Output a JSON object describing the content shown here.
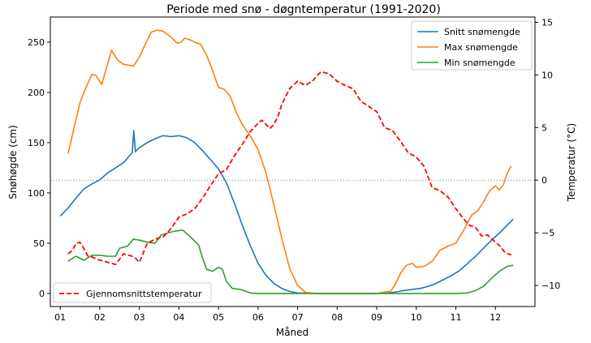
{
  "chart_data": {
    "type": "line",
    "title": "Periode med snø - døgntemperatur (1991-2020)",
    "xlabel": "Måned",
    "ylabel_left": "Snøhøgde (cm)",
    "ylabel_right": "Temperatur (°C)",
    "x_ticks": [
      "01",
      "02",
      "03",
      "04",
      "05",
      "06",
      "07",
      "08",
      "09",
      "10",
      "11",
      "12"
    ],
    "xlim": [
      0.75,
      13.0
    ],
    "ylim_left": [
      -13,
      275
    ],
    "ylim_right": [
      -12.0,
      15.5
    ],
    "yticks_left": [
      0,
      50,
      100,
      150,
      200,
      250
    ],
    "yticks_right": [
      -10,
      -5,
      0,
      5,
      10,
      15
    ],
    "reference_line": {
      "axis": "right",
      "value": 0,
      "style": "dotted",
      "color": "#999999"
    },
    "legend_upper": {
      "position": "top-right",
      "entries": [
        "snitt",
        "max",
        "min"
      ]
    },
    "legend_lower": {
      "position": "bottom-left",
      "entries": [
        "temp"
      ]
    },
    "series": [
      {
        "id": "snitt",
        "name": "Snitt snømengde",
        "axis": "left",
        "color": "#1f77b4",
        "dash": "solid",
        "points": [
          [
            1.0,
            77
          ],
          [
            1.2,
            85
          ],
          [
            1.4,
            95
          ],
          [
            1.6,
            104
          ],
          [
            1.8,
            109
          ],
          [
            2.0,
            113
          ],
          [
            2.2,
            120
          ],
          [
            2.4,
            125
          ],
          [
            2.6,
            130
          ],
          [
            2.75,
            137
          ],
          [
            2.82,
            140
          ],
          [
            2.86,
            162
          ],
          [
            2.9,
            141
          ],
          [
            3.0,
            145
          ],
          [
            3.2,
            150
          ],
          [
            3.4,
            154
          ],
          [
            3.6,
            157
          ],
          [
            3.8,
            156
          ],
          [
            4.0,
            157
          ],
          [
            4.2,
            155
          ],
          [
            4.4,
            150
          ],
          [
            4.6,
            142
          ],
          [
            4.8,
            133
          ],
          [
            5.0,
            124
          ],
          [
            5.2,
            110
          ],
          [
            5.4,
            90
          ],
          [
            5.6,
            68
          ],
          [
            5.8,
            48
          ],
          [
            6.0,
            30
          ],
          [
            6.2,
            18
          ],
          [
            6.4,
            10
          ],
          [
            6.6,
            5
          ],
          [
            6.8,
            2
          ],
          [
            7.0,
            0.5
          ],
          [
            7.5,
            0
          ],
          [
            8,
            0
          ],
          [
            8.5,
            0
          ],
          [
            9.0,
            0
          ],
          [
            9.3,
            0.5
          ],
          [
            9.5,
            1.5
          ],
          [
            9.7,
            3
          ],
          [
            9.9,
            4
          ],
          [
            10.1,
            5
          ],
          [
            10.3,
            7
          ],
          [
            10.5,
            10
          ],
          [
            10.7,
            14
          ],
          [
            10.9,
            18
          ],
          [
            11.1,
            23
          ],
          [
            11.3,
            30
          ],
          [
            11.5,
            37
          ],
          [
            11.7,
            45
          ],
          [
            11.9,
            53
          ],
          [
            12.1,
            60
          ],
          [
            12.3,
            68
          ],
          [
            12.4,
            72
          ],
          [
            12.45,
            74
          ]
        ]
      },
      {
        "id": "max",
        "name": "Max snømengde",
        "axis": "left",
        "color": "#ff7f0e",
        "dash": "solid",
        "points": [
          [
            1.2,
            139
          ],
          [
            1.35,
            165
          ],
          [
            1.5,
            190
          ],
          [
            1.65,
            205
          ],
          [
            1.8,
            218
          ],
          [
            1.9,
            217
          ],
          [
            2.05,
            208
          ],
          [
            2.1,
            215
          ],
          [
            2.3,
            242
          ],
          [
            2.45,
            232
          ],
          [
            2.6,
            228
          ],
          [
            2.75,
            227
          ],
          [
            2.85,
            226
          ],
          [
            3.0,
            235
          ],
          [
            3.15,
            248
          ],
          [
            3.3,
            260
          ],
          [
            3.45,
            262
          ],
          [
            3.6,
            261
          ],
          [
            3.8,
            255
          ],
          [
            3.95,
            249
          ],
          [
            4.05,
            250
          ],
          [
            4.15,
            254
          ],
          [
            4.3,
            252
          ],
          [
            4.45,
            249
          ],
          [
            4.55,
            248
          ],
          [
            4.7,
            237
          ],
          [
            4.85,
            222
          ],
          [
            5.0,
            205
          ],
          [
            5.15,
            203
          ],
          [
            5.3,
            196
          ],
          [
            5.45,
            180
          ],
          [
            5.6,
            168
          ],
          [
            5.8,
            157
          ],
          [
            6.0,
            143
          ],
          [
            6.2,
            120
          ],
          [
            6.4,
            88
          ],
          [
            6.6,
            55
          ],
          [
            6.8,
            25
          ],
          [
            7.0,
            8
          ],
          [
            7.2,
            1
          ],
          [
            7.5,
            0
          ],
          [
            8,
            0
          ],
          [
            8.5,
            0
          ],
          [
            9.0,
            0
          ],
          [
            9.2,
            1.5
          ],
          [
            9.35,
            2
          ],
          [
            9.45,
            8
          ],
          [
            9.6,
            20
          ],
          [
            9.75,
            28
          ],
          [
            9.9,
            30
          ],
          [
            10.0,
            26
          ],
          [
            10.2,
            27
          ],
          [
            10.4,
            32
          ],
          [
            10.6,
            43
          ],
          [
            10.8,
            47
          ],
          [
            11.0,
            50
          ],
          [
            11.2,
            63
          ],
          [
            11.4,
            78
          ],
          [
            11.55,
            82
          ],
          [
            11.7,
            91
          ],
          [
            11.85,
            102
          ],
          [
            12.0,
            107
          ],
          [
            12.1,
            103
          ],
          [
            12.2,
            108
          ],
          [
            12.3,
            120
          ],
          [
            12.4,
            127
          ]
        ]
      },
      {
        "id": "min",
        "name": "Min snømengde",
        "axis": "left",
        "color": "#2ca02c",
        "dash": "solid",
        "points": [
          [
            1.2,
            32
          ],
          [
            1.4,
            37
          ],
          [
            1.6,
            33
          ],
          [
            1.8,
            38
          ],
          [
            2.0,
            38
          ],
          [
            2.2,
            37
          ],
          [
            2.4,
            37
          ],
          [
            2.5,
            45
          ],
          [
            2.7,
            47
          ],
          [
            2.85,
            54
          ],
          [
            3.0,
            53
          ],
          [
            3.2,
            51
          ],
          [
            3.4,
            50
          ],
          [
            3.55,
            58
          ],
          [
            3.7,
            60
          ],
          [
            3.9,
            62
          ],
          [
            4.1,
            63
          ],
          [
            4.3,
            56
          ],
          [
            4.5,
            48
          ],
          [
            4.6,
            35
          ],
          [
            4.7,
            24
          ],
          [
            4.85,
            22
          ],
          [
            5.0,
            26
          ],
          [
            5.1,
            24
          ],
          [
            5.2,
            12
          ],
          [
            5.35,
            5
          ],
          [
            5.55,
            4
          ],
          [
            5.7,
            2
          ],
          [
            5.8,
            0.5
          ],
          [
            6.0,
            0
          ],
          [
            7,
            0
          ],
          [
            8,
            0
          ],
          [
            9,
            0
          ],
          [
            10,
            0
          ],
          [
            11,
            0
          ],
          [
            11.3,
            0.5
          ],
          [
            11.5,
            3
          ],
          [
            11.7,
            7
          ],
          [
            11.9,
            15
          ],
          [
            12.1,
            22
          ],
          [
            12.3,
            27
          ],
          [
            12.45,
            28
          ]
        ]
      },
      {
        "id": "temp",
        "name": "Gjennomsnittstemperatur",
        "axis": "right",
        "color": "#ff0000",
        "dash": "dashed",
        "points": [
          [
            1.2,
            -7.0
          ],
          [
            1.3,
            -6.7
          ],
          [
            1.4,
            -6.0
          ],
          [
            1.5,
            -5.9
          ],
          [
            1.6,
            -6.5
          ],
          [
            1.7,
            -7.2
          ],
          [
            1.8,
            -7.3
          ],
          [
            2.0,
            -7.6
          ],
          [
            2.2,
            -7.8
          ],
          [
            2.4,
            -8.0
          ],
          [
            2.6,
            -7.0
          ],
          [
            2.8,
            -7.2
          ],
          [
            2.9,
            -7.4
          ],
          [
            3.0,
            -7.8
          ],
          [
            3.1,
            -6.9
          ],
          [
            3.2,
            -6.0
          ],
          [
            3.4,
            -5.6
          ],
          [
            3.6,
            -5.4
          ],
          [
            3.8,
            -4.6
          ],
          [
            4.0,
            -3.5
          ],
          [
            4.2,
            -3.2
          ],
          [
            4.4,
            -2.7
          ],
          [
            4.6,
            -1.7
          ],
          [
            4.8,
            -0.5
          ],
          [
            5.0,
            0.6
          ],
          [
            5.2,
            1.0
          ],
          [
            5.4,
            2.3
          ],
          [
            5.6,
            3.4
          ],
          [
            5.8,
            4.6
          ],
          [
            6.0,
            5.4
          ],
          [
            6.1,
            5.7
          ],
          [
            6.2,
            5.3
          ],
          [
            6.3,
            4.9
          ],
          [
            6.4,
            5.3
          ],
          [
            6.5,
            6.0
          ],
          [
            6.6,
            7.2
          ],
          [
            6.8,
            8.7
          ],
          [
            7.0,
            9.4
          ],
          [
            7.2,
            9.0
          ],
          [
            7.4,
            9.5
          ],
          [
            7.5,
            10.0
          ],
          [
            7.6,
            10.3
          ],
          [
            7.8,
            10.1
          ],
          [
            8.0,
            9.4
          ],
          [
            8.2,
            9.0
          ],
          [
            8.4,
            8.7
          ],
          [
            8.6,
            7.5
          ],
          [
            8.8,
            7.0
          ],
          [
            9.0,
            6.5
          ],
          [
            9.2,
            5.0
          ],
          [
            9.4,
            4.7
          ],
          [
            9.6,
            3.7
          ],
          [
            9.8,
            2.6
          ],
          [
            10.0,
            2.2
          ],
          [
            10.2,
            1.3
          ],
          [
            10.4,
            -0.7
          ],
          [
            10.6,
            -1.0
          ],
          [
            10.8,
            -1.6
          ],
          [
            11.0,
            -2.7
          ],
          [
            11.2,
            -3.7
          ],
          [
            11.35,
            -4.3
          ],
          [
            11.5,
            -4.5
          ],
          [
            11.65,
            -5.3
          ],
          [
            11.8,
            -5.2
          ],
          [
            11.95,
            -5.7
          ],
          [
            12.1,
            -6.2
          ],
          [
            12.25,
            -6.9
          ],
          [
            12.4,
            -7.1
          ]
        ]
      }
    ]
  }
}
